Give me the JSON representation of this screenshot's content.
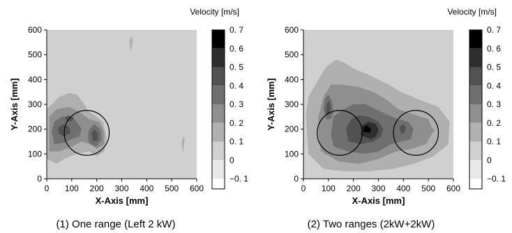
{
  "chart_data": [
    {
      "type": "heatmap",
      "caption": "(1) One range (Left 2 kW)",
      "xlabel": "X-Axis [mm]",
      "ylabel": "Y-Axis [mm]",
      "xlim": [
        0,
        600
      ],
      "ylim": [
        0,
        600
      ],
      "xticks": [
        "0",
        "100",
        "200",
        "300",
        "400",
        "500",
        "600"
      ],
      "yticks": [
        "0",
        "100",
        "200",
        "300",
        "400",
        "500",
        "600"
      ],
      "colorbar": {
        "title": "Velocity [m/s]",
        "ticks": [
          "0. 7",
          "0. 6",
          "0. 5",
          "0. 4",
          "0. 3",
          "0. 2",
          "0. 1",
          "0",
          "−0. 1"
        ],
        "colors": [
          "#000000",
          "#2e2e2e",
          "#525252",
          "#6f6f6f",
          "#8f8f8f",
          "#b0b0b0",
          "#d0d0d0",
          "#e8e8e8",
          "#ffffff"
        ]
      },
      "background_level": "0.1-0.2",
      "regions": [
        {
          "level": "0.2-0.3",
          "points": [
            [
              0,
              80
            ],
            [
              40,
              60
            ],
            [
              70,
              80
            ],
            [
              120,
              100
            ],
            [
              170,
              110
            ],
            [
              200,
              90
            ],
            [
              230,
              110
            ],
            [
              240,
              160
            ],
            [
              225,
              230
            ],
            [
              200,
              250
            ],
            [
              170,
              270
            ],
            [
              150,
              300
            ],
            [
              120,
              340
            ],
            [
              90,
              345
            ],
            [
              50,
              330
            ],
            [
              20,
              300
            ],
            [
              0,
              280
            ]
          ]
        },
        {
          "level": "0.3-0.4",
          "points": [
            [
              10,
              110
            ],
            [
              50,
              110
            ],
            [
              100,
              130
            ],
            [
              140,
              150
            ],
            [
              175,
              140
            ],
            [
              200,
              120
            ],
            [
              230,
              140
            ],
            [
              230,
              190
            ],
            [
              210,
              230
            ],
            [
              170,
              240
            ],
            [
              130,
              270
            ],
            [
              90,
              290
            ],
            [
              40,
              280
            ],
            [
              10,
              250
            ]
          ]
        },
        {
          "level": "0.4-0.5",
          "points": [
            [
              30,
              140
            ],
            [
              70,
              145
            ],
            [
              110,
              165
            ],
            [
              130,
              170
            ],
            [
              140,
              200
            ],
            [
              120,
              230
            ],
            [
              100,
              250
            ],
            [
              60,
              250
            ],
            [
              30,
              230
            ],
            [
              20,
              190
            ]
          ]
        },
        {
          "level": "0.4-0.5",
          "points": [
            [
              170,
              140
            ],
            [
              200,
              130
            ],
            [
              220,
              160
            ],
            [
              215,
              200
            ],
            [
              190,
              220
            ],
            [
              170,
              200
            ],
            [
              165,
              170
            ]
          ]
        },
        {
          "level": "0.5-0.6",
          "points": [
            [
              50,
              180
            ],
            [
              70,
              170
            ],
            [
              95,
              185
            ],
            [
              90,
              210
            ],
            [
              65,
              220
            ],
            [
              45,
              205
            ]
          ]
        },
        {
          "level": "0.5-0.6",
          "points": [
            [
              75,
              235
            ],
            [
              100,
              232
            ],
            [
              110,
              245
            ],
            [
              90,
              255
            ],
            [
              75,
              250
            ]
          ]
        },
        {
          "level": "0.5-0.6",
          "points": [
            [
              185,
              150
            ],
            [
              205,
              155
            ],
            [
              205,
              185
            ],
            [
              190,
              200
            ],
            [
              180,
              185
            ]
          ]
        },
        {
          "level": "0.2-0.3",
          "points": [
            [
              335,
              510
            ],
            [
              340,
              530
            ],
            [
              345,
              560
            ],
            [
              338,
              575
            ],
            [
              330,
              555
            ]
          ]
        },
        {
          "level": "0.2-0.3",
          "points": [
            [
              545,
              100
            ],
            [
              548,
              130
            ],
            [
              552,
              160
            ],
            [
              545,
              170
            ],
            [
              540,
              140
            ]
          ]
        }
      ],
      "circles": [
        {
          "x": 160,
          "y": 185,
          "r": 90
        }
      ]
    },
    {
      "type": "heatmap",
      "caption": "(2) Two ranges (2kW+2kW)",
      "xlabel": "X-Axis [mm]",
      "ylabel": "Y-Axis [mm]",
      "xlim": [
        0,
        600
      ],
      "ylim": [
        0,
        600
      ],
      "xticks": [
        "0",
        "100",
        "200",
        "300",
        "400",
        "500",
        "600"
      ],
      "yticks": [
        "0",
        "100",
        "200",
        "300",
        "400",
        "500",
        "600"
      ],
      "colorbar": {
        "title": "Velocity [m/s]",
        "ticks": [
          "0. 7",
          "0. 6",
          "0. 5",
          "0. 4",
          "0. 3",
          "0. 2",
          "0. 1",
          "0",
          "−0. 1"
        ],
        "colors": [
          "#000000",
          "#2e2e2e",
          "#525252",
          "#6f6f6f",
          "#8f8f8f",
          "#b0b0b0",
          "#d0d0d0",
          "#e8e8e8",
          "#ffffff"
        ]
      },
      "background_level": "0.1-0.2",
      "regions": [
        {
          "level": "0.2-0.3",
          "points": [
            [
              20,
              100
            ],
            [
              80,
              40
            ],
            [
              160,
              30
            ],
            [
              260,
              30
            ],
            [
              360,
              40
            ],
            [
              440,
              60
            ],
            [
              520,
              90
            ],
            [
              580,
              140
            ],
            [
              585,
              230
            ],
            [
              540,
              290
            ],
            [
              460,
              320
            ],
            [
              390,
              350
            ],
            [
              340,
              380
            ],
            [
              260,
              420
            ],
            [
              210,
              440
            ],
            [
              160,
              470
            ],
            [
              130,
              480
            ],
            [
              90,
              450
            ],
            [
              60,
              400
            ],
            [
              20,
              330
            ],
            [
              10,
              250
            ]
          ]
        },
        {
          "level": "0.3-0.4",
          "points": [
            [
              70,
              110
            ],
            [
              140,
              70
            ],
            [
              220,
              60
            ],
            [
              300,
              80
            ],
            [
              370,
              110
            ],
            [
              430,
              120
            ],
            [
              490,
              140
            ],
            [
              520,
              190
            ],
            [
              500,
              240
            ],
            [
              440,
              260
            ],
            [
              380,
              280
            ],
            [
              330,
              320
            ],
            [
              280,
              350
            ],
            [
              220,
              370
            ],
            [
              150,
              380
            ],
            [
              110,
              380
            ],
            [
              80,
              330
            ],
            [
              60,
              250
            ],
            [
              60,
              180
            ]
          ]
        },
        {
          "level": "0.4-0.5",
          "points": [
            [
              120,
              130
            ],
            [
              180,
              110
            ],
            [
              240,
              100
            ],
            [
              300,
              110
            ],
            [
              350,
              140
            ],
            [
              390,
              150
            ],
            [
              430,
              160
            ],
            [
              440,
              200
            ],
            [
              420,
              230
            ],
            [
              380,
              240
            ],
            [
              330,
              260
            ],
            [
              290,
              280
            ],
            [
              250,
              300
            ],
            [
              200,
              300
            ],
            [
              160,
              280
            ],
            [
              120,
              250
            ],
            [
              110,
              180
            ]
          ]
        },
        {
          "level": "0.4-0.5",
          "points": [
            [
              90,
              240
            ],
            [
              110,
              240
            ],
            [
              120,
              270
            ],
            [
              115,
              310
            ],
            [
              100,
              340
            ],
            [
              85,
              320
            ],
            [
              80,
              280
            ]
          ]
        },
        {
          "level": "0.5-0.6",
          "points": [
            [
              180,
              150
            ],
            [
              230,
              140
            ],
            [
              280,
              150
            ],
            [
              310,
              170
            ],
            [
              320,
              200
            ],
            [
              300,
              230
            ],
            [
              260,
              250
            ],
            [
              220,
              255
            ],
            [
              190,
              240
            ],
            [
              170,
              200
            ]
          ]
        },
        {
          "level": "0.5-0.6",
          "points": [
            [
              90,
              260
            ],
            [
              105,
              262
            ],
            [
              110,
              290
            ],
            [
              102,
              315
            ],
            [
              92,
              300
            ]
          ]
        },
        {
          "level": "0.5-0.6",
          "points": [
            [
              390,
              180
            ],
            [
              405,
              185
            ],
            [
              410,
              205
            ],
            [
              400,
              220
            ],
            [
              385,
              210
            ]
          ]
        },
        {
          "level": "0.6-0.7",
          "points": [
            [
              230,
              175
            ],
            [
              270,
              160
            ],
            [
              290,
              170
            ],
            [
              300,
              195
            ],
            [
              290,
              220
            ],
            [
              260,
              230
            ],
            [
              235,
              215
            ]
          ]
        },
        {
          "level": "0.7+",
          "points": [
            [
              240,
              190
            ],
            [
              265,
              185
            ],
            [
              270,
              200
            ],
            [
              255,
              215
            ],
            [
              240,
              210
            ]
          ]
        },
        {
          "level": "0.3-0.4",
          "points": [
            [
              500,
              185
            ],
            [
              525,
              190
            ],
            [
              520,
              205
            ],
            [
              500,
              200
            ]
          ]
        }
      ],
      "circles": [
        {
          "x": 145,
          "y": 185,
          "r": 90
        },
        {
          "x": 450,
          "y": 185,
          "r": 90
        }
      ]
    }
  ]
}
